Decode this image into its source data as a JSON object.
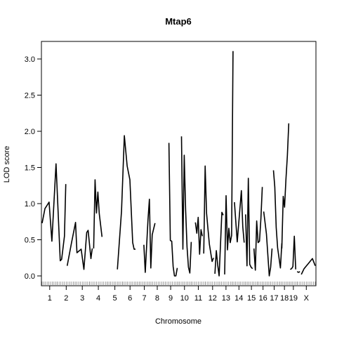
{
  "chart_data": {
    "type": "line",
    "title": "Mtap6",
    "xlabel": "Chromosome",
    "ylabel": "LOD score",
    "ylim": [
      -0.09,
      3.25
    ],
    "y_ticks": [
      "0.0",
      "0.5",
      "1.0",
      "1.5",
      "2.0",
      "2.5",
      "3.0"
    ],
    "y_tick_values": [
      0,
      0.5,
      1.0,
      1.5,
      2.0,
      2.5,
      3.0
    ],
    "grid": false,
    "line_color": "#000000",
    "chromosomes": [
      {
        "label": "1",
        "range": [
          0,
          17
        ],
        "x": [
          0,
          2,
          5,
          7,
          10,
          13,
          14,
          16,
          17
        ],
        "y": [
          0.73,
          0.93,
          1.02,
          0.48,
          1.55,
          0.21,
          0.23,
          0.55,
          1.27
        ]
      },
      {
        "label": "2",
        "range": [
          17,
          37
        ],
        "x": [
          18,
          21,
          24,
          25,
          28,
          30,
          32,
          33,
          35,
          36
        ],
        "y": [
          0.14,
          0.45,
          0.74,
          0.32,
          0.37,
          0.09,
          0.6,
          0.63,
          0.24,
          0.38
        ]
      },
      {
        "label": "3",
        "range": [
          37,
          53
        ],
        "x": [
          37,
          38,
          39,
          40,
          41,
          43
        ],
        "y": [
          0.38,
          1.33,
          0.87,
          1.16,
          0.86,
          0.54
        ]
      },
      {
        "label": "4",
        "range": [
          53,
          73
        ],
        "x": [
          54,
          57,
          59,
          61,
          63,
          65,
          66,
          67
        ],
        "y": [
          0.09,
          0.9,
          1.94,
          1.52,
          1.33,
          0.46,
          0.37,
          0.37
        ]
      },
      {
        "label": "5",
        "range": [
          73,
          90
        ],
        "x": [
          73,
          74,
          76,
          77,
          78,
          79,
          81
        ],
        "y": [
          0.43,
          0.05,
          0.78,
          1.06,
          0.11,
          0.57,
          0.73
        ]
      },
      {
        "label": "6",
        "range": [
          90,
          107
        ],
        "x": [
          91,
          92,
          93,
          94,
          95,
          96,
          97
        ],
        "y": [
          1.84,
          0.49,
          0.48,
          0.13,
          0.0,
          0.0,
          0.11
        ]
      },
      {
        "label": "7",
        "range": [
          107,
          122
        ],
        "x": [
          100,
          101,
          102,
          103,
          104,
          105,
          106,
          107
        ],
        "y": [
          1.93,
          0.37,
          1.67,
          0.91,
          0.4,
          0.12,
          0.04,
          0.47
        ]
      },
      {
        "label": "8",
        "range": [
          122,
          136
        ],
        "x": [
          110,
          111,
          112,
          113,
          114,
          115
        ],
        "y": [
          0.74,
          0.59,
          0.81,
          0.3,
          0.64,
          0.55
        ]
      },
      {
        "label": "9",
        "range": [
          136,
          152
        ],
        "x": [
          116,
          117,
          118,
          119,
          120,
          122,
          123
        ],
        "y": [
          0.31,
          1.52,
          0.87,
          0.65,
          0.44,
          0.2,
          0.25
        ]
      },
      {
        "label": "10",
        "range": [
          152,
          167
        ],
        "x": [
          124,
          125,
          126,
          127,
          128,
          129,
          130
        ],
        "y": [
          0.03,
          0.35,
          0.15,
          0.0,
          0.42,
          0.88,
          0.84
        ]
      },
      {
        "label": "11",
        "range": [
          167,
          183
        ],
        "x": [
          131,
          132,
          133,
          134,
          135,
          136,
          137
        ],
        "y": [
          0.02,
          1.11,
          0.36,
          0.66,
          0.46,
          0.56,
          3.11
        ]
      },
      {
        "label": "12",
        "range": [
          183,
          199
        ],
        "x": [
          138,
          140,
          141,
          143,
          144,
          145
        ],
        "y": [
          1.02,
          0.47,
          0.7,
          1.18,
          0.68,
          0.46
        ]
      },
      {
        "label": "13",
        "range": [
          199,
          213
        ],
        "x": [
          146,
          147,
          148,
          149,
          150,
          151
        ],
        "y": [
          0.85,
          0.14,
          1.35,
          0.16,
          0.12,
          0.1
        ]
      },
      {
        "label": "14",
        "range": [
          213,
          228
        ],
        "x": [
          152,
          153,
          154,
          155,
          156,
          157,
          158
        ],
        "y": [
          0.38,
          0.08,
          0.76,
          0.46,
          0.48,
          0.79,
          1.23
        ]
      },
      {
        "label": "15",
        "range": [
          228,
          241
        ],
        "x": [
          159,
          161,
          163,
          164,
          165
        ],
        "y": [
          0.89,
          0.58,
          0.0,
          0.12,
          0.38
        ]
      },
      {
        "label": "16",
        "range": [
          241,
          254
        ],
        "x": [
          166,
          167,
          168,
          169,
          170,
          171,
          172
        ],
        "y": [
          1.46,
          1.23,
          0.67,
          0.39,
          0.25,
          0.11,
          0.45
        ]
      },
      {
        "label": "17",
        "range": [
          254,
          266
        ],
        "x": [
          172,
          173,
          174,
          175,
          176,
          177
        ],
        "y": [
          0.38,
          1.1,
          0.95,
          1.34,
          1.66,
          2.11
        ]
      },
      {
        "label": "18",
        "range": [
          266,
          277
        ],
        "x": [
          178,
          179,
          180,
          181,
          182
        ],
        "y": [
          0.09,
          0.1,
          0.13,
          0.55,
          0.09
        ]
      },
      {
        "label": "19",
        "range": [
          277,
          286
        ],
        "x": [
          183,
          184,
          185
        ],
        "y": [
          0.06,
          0.05,
          0.06
        ]
      },
      {
        "label": "X",
        "range": [
          286,
          306
        ],
        "x": [
          186,
          188,
          191,
          194,
          196
        ],
        "y": [
          0.02,
          0.1,
          0.17,
          0.24,
          0.14
        ]
      }
    ]
  }
}
